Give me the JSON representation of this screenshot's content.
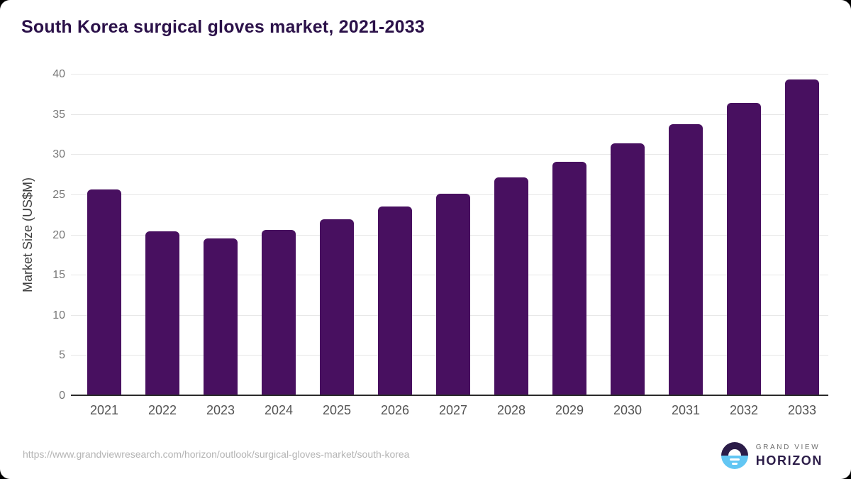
{
  "page": {
    "background_color": "#000000",
    "card_background_color": "#ffffff"
  },
  "header": {
    "title": "South Korea surgical gloves market, 2021-2033"
  },
  "chart_data": {
    "type": "bar",
    "title": "South Korea surgical gloves market, 2021-2033",
    "categories": [
      "2021",
      "2022",
      "2023",
      "2024",
      "2025",
      "2026",
      "2027",
      "2028",
      "2029",
      "2030",
      "2031",
      "2032",
      "2033"
    ],
    "values": [
      25.7,
      20.5,
      19.6,
      20.7,
      22.0,
      23.6,
      25.2,
      27.2,
      29.1,
      31.4,
      33.8,
      36.5,
      39.4
    ],
    "xlabel": "",
    "ylabel": "Market Size (US$M)",
    "ylim": [
      0,
      40
    ],
    "ytick_step": 5,
    "yticks": [
      0,
      5,
      10,
      15,
      20,
      25,
      30,
      35,
      40
    ],
    "grid": true,
    "legend": "none",
    "bar_color": "#481060",
    "gridline_color": "#e7e7e7",
    "axis_line_color": "#2b2b2b"
  },
  "theme": {
    "title_color": "#2b1149",
    "logo_dark_color": "#2b1c48",
    "logo_blue_color": "#62c6f3"
  },
  "footer": {
    "source_url": "https://www.grandviewresearch.com/horizon/outlook/surgical-gloves-market/south-korea",
    "logo": {
      "brand_top": "GRAND VIEW",
      "brand_bottom": "HORIZON"
    }
  }
}
